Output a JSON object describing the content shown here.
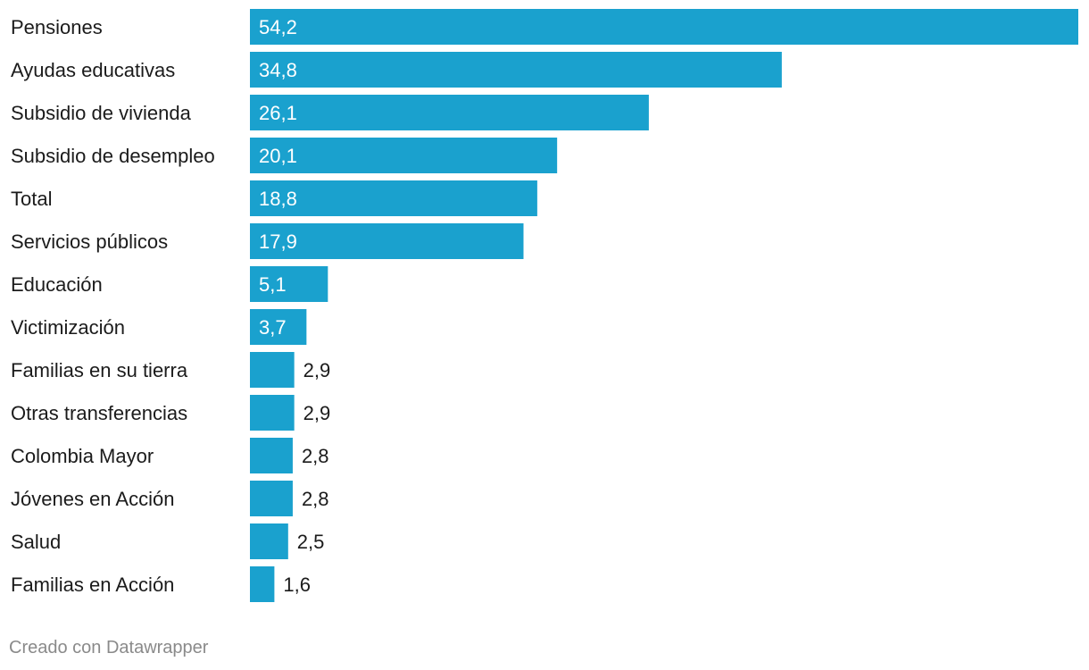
{
  "colors": {
    "bar": "#1aa1ce",
    "label_inside": "#ffffff",
    "label_outside": "#1b1b1b",
    "credit": "#8a8a8a"
  },
  "credit": "Creado con Datawrapper",
  "chart_data": {
    "type": "bar",
    "orientation": "horizontal",
    "categories": [
      "Pensiones",
      "Ayudas educativas",
      "Subsidio de vivienda",
      "Subsidio de desempleo",
      "Total",
      "Servicios públicos",
      "Educación",
      "Victimización",
      "Familias en su tierra",
      "Otras transferencias",
      "Colombia Mayor",
      "Jóvenes en Acción",
      "Salud",
      "Familias en Acción"
    ],
    "values": [
      54.2,
      34.8,
      26.1,
      20.1,
      18.8,
      17.9,
      5.1,
      3.7,
      2.9,
      2.9,
      2.8,
      2.8,
      2.5,
      1.6
    ],
    "value_labels": [
      "54,2",
      "34,8",
      "26,1",
      "20,1",
      "18,8",
      "17,9",
      "5,1",
      "3,7",
      "2,9",
      "2,9",
      "2,8",
      "2,8",
      "2,5",
      "1,6"
    ],
    "title": "",
    "xlabel": "",
    "ylabel": "",
    "xlim": [
      0,
      54.2
    ],
    "grid": false,
    "legend": "none"
  }
}
